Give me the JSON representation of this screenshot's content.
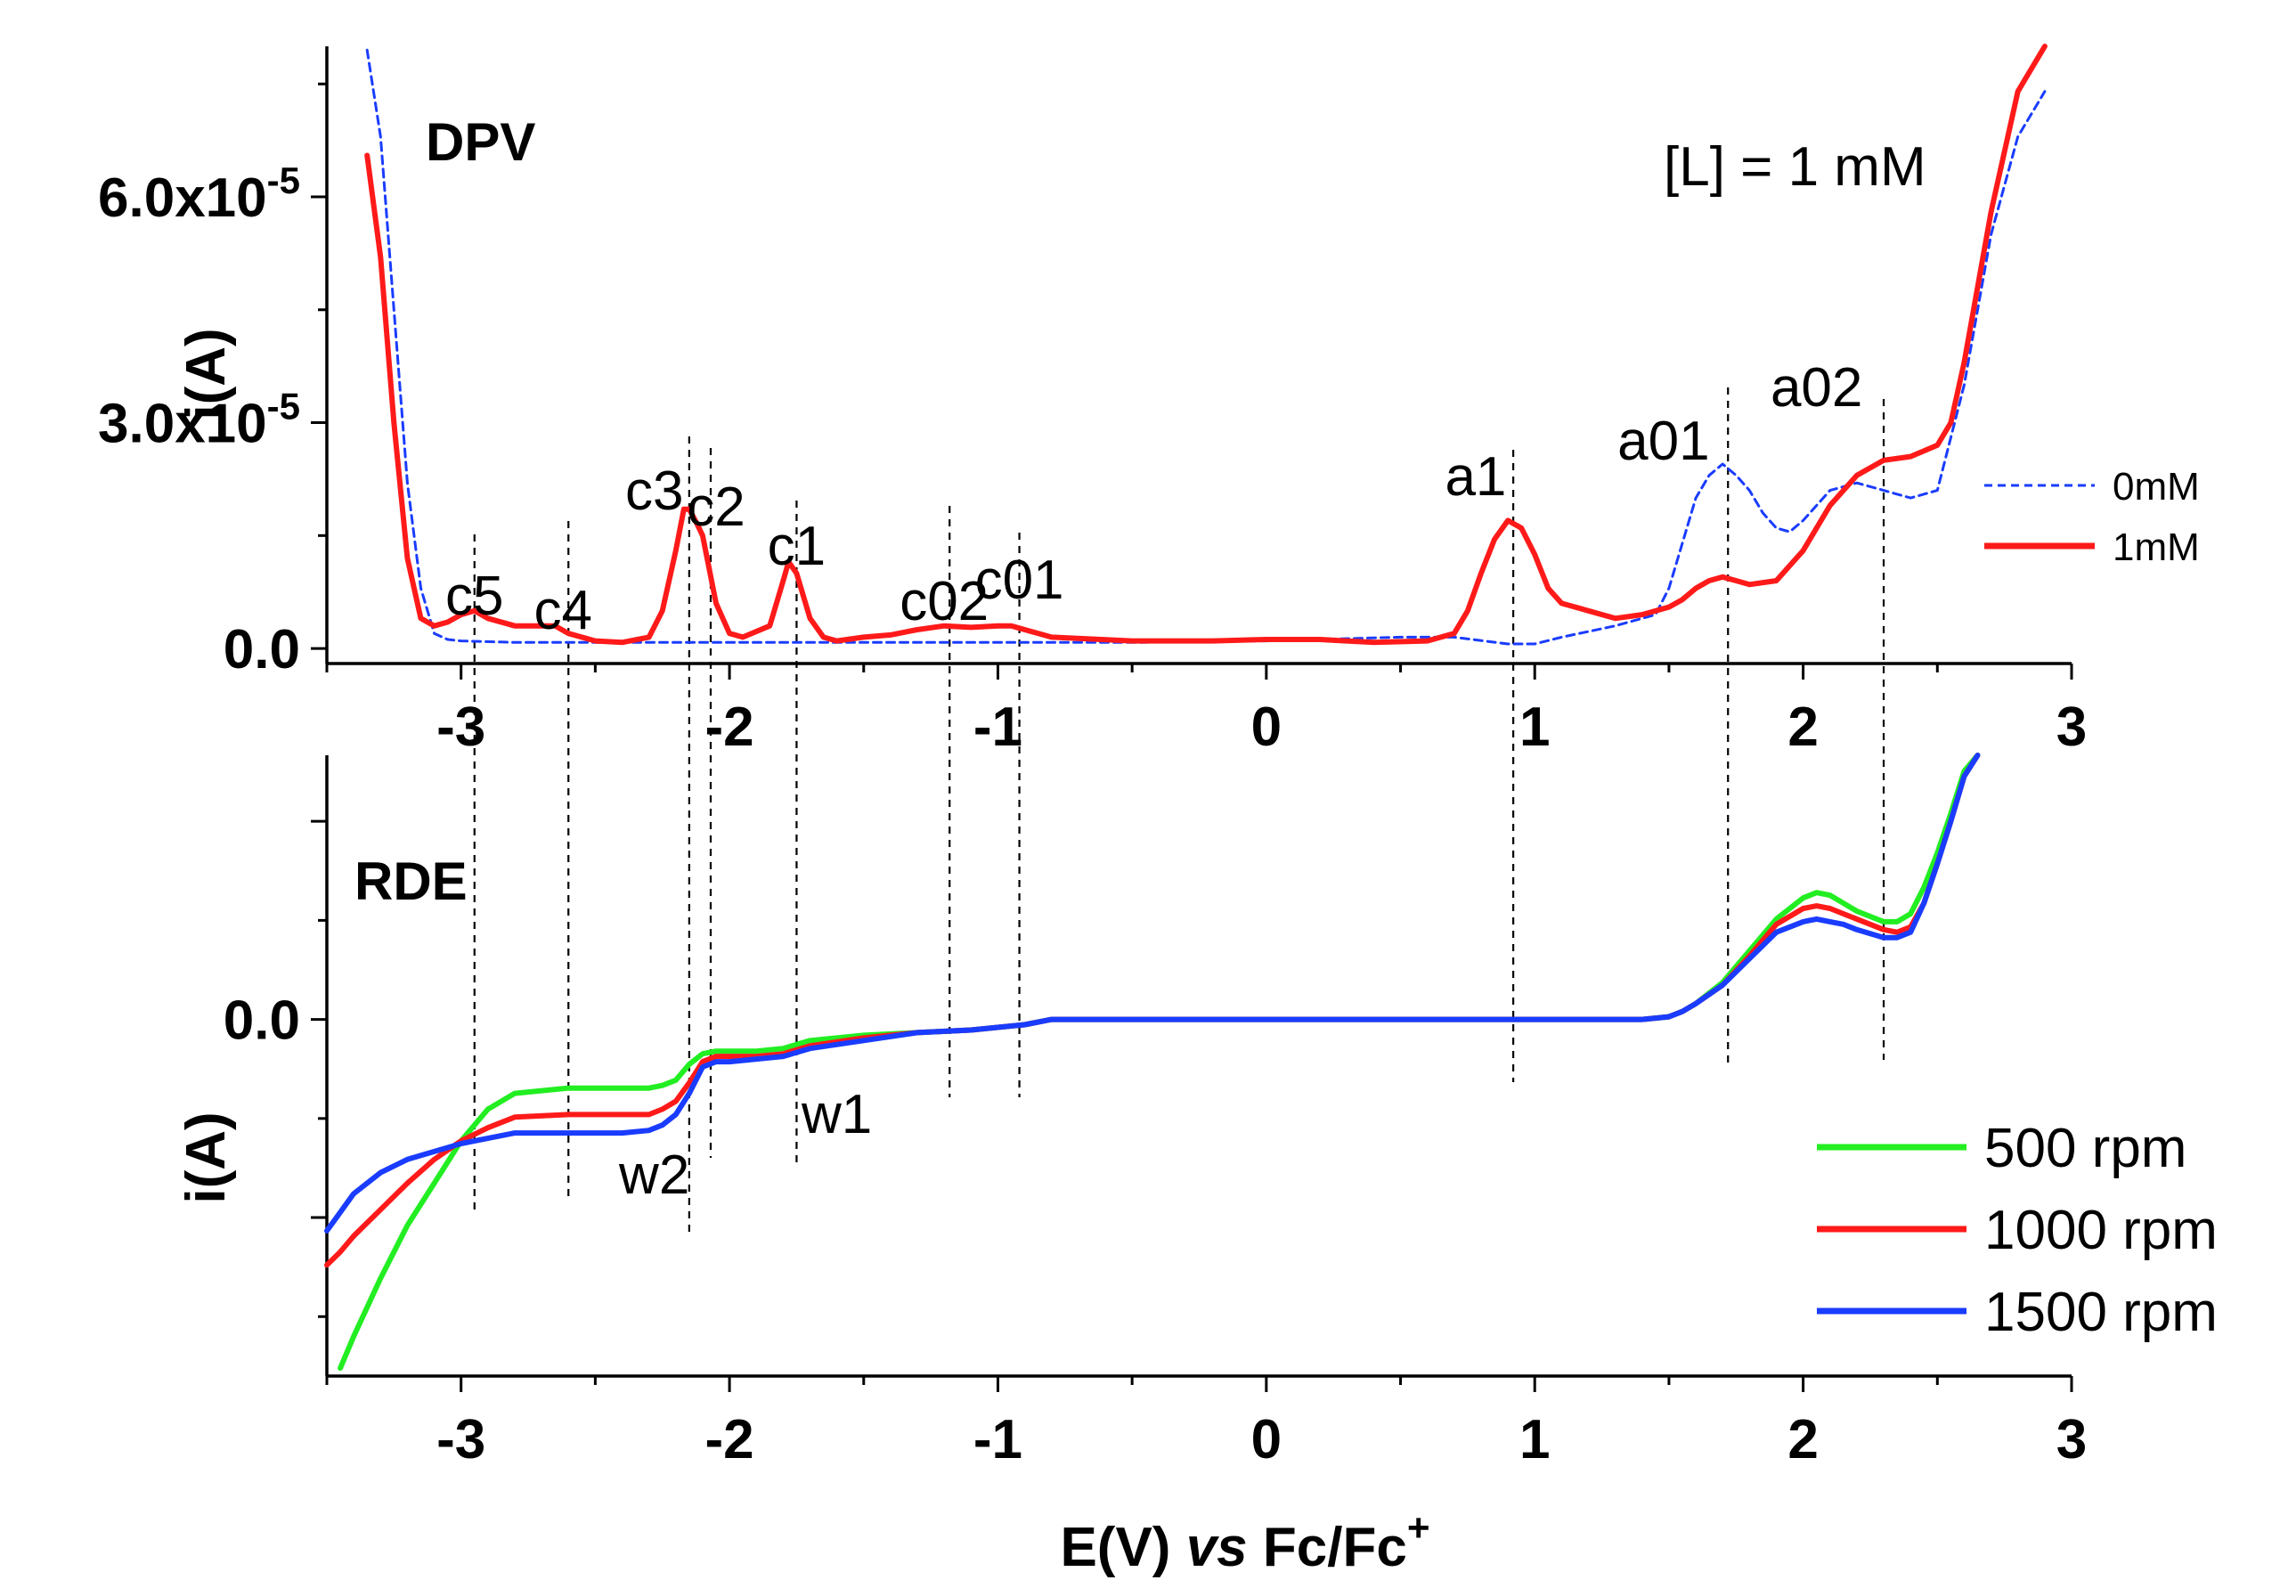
{
  "chart_data": [
    {
      "panel": "DPV",
      "type": "line",
      "panel_label": "DPV",
      "annotation": "[L] = 1 mM",
      "ylabel": "i(A)",
      "xlim": [
        -3.5,
        3.0
      ],
      "ylim": [
        -2e-06,
        8e-05
      ],
      "x_ticks": [
        -3,
        -2,
        -1,
        0,
        1,
        2,
        3
      ],
      "x_tick_labels": [
        "-3",
        "-2",
        "-1",
        "0",
        "1",
        "2",
        "3"
      ],
      "y_ticks": [
        0,
        3e-05,
        6e-05
      ],
      "y_tick_labels": [
        {
          "mantissa": "0.0",
          "exp": ""
        },
        {
          "mantissa": "3.0x10",
          "exp": "-5"
        },
        {
          "mantissa": "6.0x10",
          "exp": "-5"
        }
      ],
      "series": [
        {
          "name": "0mM",
          "color": "#1a3cff",
          "style": "dashed",
          "x": [
            -3.35,
            -3.3,
            -3.25,
            -3.2,
            -3.15,
            -3.1,
            -3.05,
            -3.0,
            -2.8,
            -2.5,
            -2.2,
            -2.0,
            -1.5,
            -1.0,
            -0.5,
            0.0,
            0.5,
            0.7,
            0.9,
            1.0,
            1.1,
            1.3,
            1.45,
            1.5,
            1.55,
            1.6,
            1.65,
            1.7,
            1.75,
            1.8,
            1.85,
            1.9,
            1.95,
            2.0,
            2.1,
            2.2,
            2.3,
            2.4,
            2.5,
            2.6,
            2.7,
            2.8,
            2.9
          ],
          "y": [
            7.95e-05,
            6.8e-05,
            4.5e-05,
            2.2e-05,
            8e-06,
            2e-06,
            1.2e-06,
            1e-06,
            8e-07,
            8e-07,
            8e-07,
            8e-07,
            8e-07,
            8e-07,
            8e-07,
            1e-06,
            1.5e-06,
            1.5e-06,
            6e-07,
            6e-07,
            1.5e-06,
            3e-06,
            4.5e-06,
            8e-06,
            1.4e-05,
            2e-05,
            2.3e-05,
            2.45e-05,
            2.3e-05,
            2.1e-05,
            1.8e-05,
            1.6e-05,
            1.55e-05,
            1.7e-05,
            2.1e-05,
            2.2e-05,
            2.1e-05,
            2e-05,
            2.1e-05,
            3.5e-05,
            5.5e-05,
            6.8e-05,
            7.4e-05
          ]
        },
        {
          "name": "1mM",
          "color": "#ff1a1a",
          "style": "solid",
          "x": [
            -3.35,
            -3.3,
            -3.25,
            -3.2,
            -3.15,
            -3.1,
            -3.05,
            -3.0,
            -2.95,
            -2.9,
            -2.8,
            -2.7,
            -2.65,
            -2.6,
            -2.5,
            -2.4,
            -2.3,
            -2.25,
            -2.2,
            -2.17,
            -2.15,
            -2.12,
            -2.1,
            -2.05,
            -2.0,
            -1.95,
            -1.85,
            -1.8,
            -1.78,
            -1.75,
            -1.7,
            -1.65,
            -1.6,
            -1.5,
            -1.4,
            -1.3,
            -1.2,
            -1.1,
            -1.0,
            -0.95,
            -0.9,
            -0.8,
            -0.5,
            -0.2,
            0.0,
            0.2,
            0.4,
            0.6,
            0.7,
            0.75,
            0.8,
            0.85,
            0.9,
            0.95,
            1.0,
            1.05,
            1.1,
            1.2,
            1.3,
            1.4,
            1.5,
            1.55,
            1.6,
            1.65,
            1.7,
            1.75,
            1.8,
            1.9,
            2.0,
            2.1,
            2.2,
            2.3,
            2.4,
            2.5,
            2.55,
            2.6,
            2.65,
            2.7,
            2.8,
            2.9
          ],
          "y": [
            6.55e-05,
            5.2e-05,
            3e-05,
            1.2e-05,
            4e-06,
            3e-06,
            3.5e-06,
            4.5e-06,
            5e-06,
            4e-06,
            3e-06,
            3e-06,
            3e-06,
            2e-06,
            1e-06,
            8e-07,
            1.5e-06,
            5e-06,
            1.3e-05,
            1.85e-05,
            1.85e-05,
            1.65e-05,
            1.5e-05,
            6e-06,
            2e-06,
            1.5e-06,
            3e-06,
            9e-06,
            1.15e-05,
            1e-05,
            4e-06,
            1.5e-06,
            1e-06,
            1.5e-06,
            1.8e-06,
            2.5e-06,
            3e-06,
            2.8e-06,
            3e-06,
            3e-06,
            2.5e-06,
            1.5e-06,
            1e-06,
            1e-06,
            1.2e-06,
            1.2e-06,
            8e-07,
            1e-06,
            2e-06,
            5e-06,
            1e-05,
            1.45e-05,
            1.7e-05,
            1.6e-05,
            1.25e-05,
            8e-06,
            6e-06,
            5e-06,
            4e-06,
            4.5e-06,
            5.5e-06,
            6.5e-06,
            8e-06,
            9e-06,
            9.5e-06,
            9e-06,
            8.5e-06,
            9e-06,
            1.3e-05,
            1.9e-05,
            2.3e-05,
            2.5e-05,
            2.55e-05,
            2.7e-05,
            3e-05,
            3.8e-05,
            4.8e-05,
            5.8e-05,
            7.4e-05,
            8.2e-05
          ]
        }
      ],
      "legend": [
        {
          "label": "0mM",
          "color": "#1a3cff",
          "style": "dashed"
        },
        {
          "label": "1mM",
          "color": "#ff1a1a",
          "style": "solid"
        }
      ]
    },
    {
      "panel": "RDE",
      "type": "line",
      "panel_label": "RDE",
      "ylabel": "i(A)",
      "xlabel_parts": {
        "pre": "E(V) ",
        "italic": "vs",
        "post": " Fc/Fc",
        "sup": "+"
      },
      "xlim": [
        -3.5,
        3.0
      ],
      "ylim": [
        -1.35,
        1.0
      ],
      "x_ticks": [
        -3,
        -2,
        -1,
        0,
        1,
        2,
        3
      ],
      "x_tick_labels": [
        "-3",
        "-2",
        "-1",
        "0",
        "1",
        "2",
        "3"
      ],
      "y_ticks": [
        0.0
      ],
      "y_tick_labels": [
        "0.0"
      ],
      "series": [
        {
          "name": "500 rpm",
          "color": "#22ee22",
          "x": [
            -3.45,
            -3.4,
            -3.3,
            -3.2,
            -3.1,
            -3.0,
            -2.9,
            -2.8,
            -2.6,
            -2.4,
            -2.3,
            -2.25,
            -2.2,
            -2.15,
            -2.1,
            -2.05,
            -2.0,
            -1.9,
            -1.8,
            -1.7,
            -1.5,
            -1.3,
            -1.1,
            -0.9,
            -0.8,
            -0.5,
            0.0,
            0.5,
            1.0,
            1.4,
            1.5,
            1.55,
            1.6,
            1.7,
            1.8,
            1.9,
            2.0,
            2.05,
            2.1,
            2.15,
            2.2,
            2.3,
            2.35,
            2.4,
            2.45,
            2.5,
            2.55,
            2.6,
            2.65
          ],
          "y": [
            -1.32,
            -1.2,
            -0.98,
            -0.78,
            -0.62,
            -0.46,
            -0.34,
            -0.28,
            -0.26,
            -0.26,
            -0.26,
            -0.25,
            -0.23,
            -0.17,
            -0.13,
            -0.12,
            -0.12,
            -0.12,
            -0.11,
            -0.08,
            -0.06,
            -0.05,
            -0.04,
            -0.02,
            0.0,
            0.0,
            0.0,
            0.0,
            0.0,
            0.0,
            0.01,
            0.03,
            0.06,
            0.14,
            0.26,
            0.38,
            0.46,
            0.48,
            0.47,
            0.44,
            0.41,
            0.37,
            0.37,
            0.4,
            0.5,
            0.63,
            0.78,
            0.94,
            1.0
          ]
        },
        {
          "name": "1000 rpm",
          "color": "#ff1a1a",
          "x": [
            -3.5,
            -3.45,
            -3.4,
            -3.3,
            -3.2,
            -3.1,
            -3.0,
            -2.9,
            -2.8,
            -2.6,
            -2.4,
            -2.3,
            -2.25,
            -2.2,
            -2.15,
            -2.1,
            -2.05,
            -2.0,
            -1.9,
            -1.8,
            -1.7,
            -1.5,
            -1.3,
            -1.1,
            -0.9,
            -0.8,
            -0.5,
            0.0,
            0.5,
            1.0,
            1.4,
            1.5,
            1.55,
            1.6,
            1.7,
            1.8,
            1.9,
            2.0,
            2.05,
            2.1,
            2.15,
            2.2,
            2.3,
            2.35,
            2.4,
            2.45,
            2.5,
            2.55,
            2.6,
            2.65
          ],
          "y": [
            -0.93,
            -0.88,
            -0.82,
            -0.72,
            -0.62,
            -0.53,
            -0.46,
            -0.41,
            -0.37,
            -0.36,
            -0.36,
            -0.36,
            -0.34,
            -0.31,
            -0.24,
            -0.16,
            -0.14,
            -0.14,
            -0.14,
            -0.13,
            -0.1,
            -0.07,
            -0.05,
            -0.04,
            -0.02,
            0.0,
            0.0,
            0.0,
            0.0,
            0.0,
            0.0,
            0.01,
            0.03,
            0.06,
            0.13,
            0.24,
            0.36,
            0.42,
            0.43,
            0.42,
            0.4,
            0.38,
            0.34,
            0.33,
            0.35,
            0.44,
            0.59,
            0.75,
            0.92,
            1.0
          ]
        },
        {
          "name": "1500 rpm",
          "color": "#1a3cff",
          "x": [
            -3.5,
            -3.45,
            -3.4,
            -3.3,
            -3.2,
            -3.1,
            -3.0,
            -2.9,
            -2.8,
            -2.6,
            -2.4,
            -2.3,
            -2.25,
            -2.2,
            -2.15,
            -2.1,
            -2.05,
            -2.0,
            -1.9,
            -1.8,
            -1.7,
            -1.5,
            -1.3,
            -1.1,
            -0.9,
            -0.8,
            -0.5,
            0.0,
            0.5,
            1.0,
            1.4,
            1.5,
            1.55,
            1.6,
            1.7,
            1.8,
            1.9,
            2.0,
            2.05,
            2.1,
            2.15,
            2.2,
            2.3,
            2.35,
            2.4,
            2.45,
            2.5,
            2.55,
            2.6,
            2.65
          ],
          "y": [
            -0.8,
            -0.73,
            -0.66,
            -0.58,
            -0.53,
            -0.5,
            -0.47,
            -0.45,
            -0.43,
            -0.43,
            -0.43,
            -0.42,
            -0.4,
            -0.36,
            -0.28,
            -0.18,
            -0.16,
            -0.16,
            -0.15,
            -0.14,
            -0.11,
            -0.08,
            -0.05,
            -0.04,
            -0.02,
            0.0,
            0.0,
            0.0,
            0.0,
            0.0,
            0.0,
            0.01,
            0.03,
            0.06,
            0.13,
            0.23,
            0.33,
            0.37,
            0.38,
            0.37,
            0.36,
            0.34,
            0.31,
            0.31,
            0.33,
            0.44,
            0.59,
            0.75,
            0.92,
            1.0
          ]
        }
      ],
      "legend": [
        {
          "label": "500 rpm",
          "color": "#22ee22"
        },
        {
          "label": "1000 rpm",
          "color": "#ff1a1a"
        },
        {
          "label": "1500 rpm",
          "color": "#1a3cff"
        }
      ]
    }
  ],
  "peak_markers": [
    {
      "label": "c5",
      "x": -2.95
    },
    {
      "label": "c4",
      "x": -2.6
    },
    {
      "label": "c3",
      "x": -2.15
    },
    {
      "label": "c2",
      "x": -2.07
    },
    {
      "label": "c1",
      "x": -1.75
    },
    {
      "label": "c02",
      "x": -1.18
    },
    {
      "label": "c01",
      "x": -0.92
    },
    {
      "label": "a1",
      "x": 0.92
    },
    {
      "label": "a01",
      "x": 1.72
    },
    {
      "label": "a02",
      "x": 2.3
    }
  ],
  "wave_labels": [
    {
      "label": "w1",
      "x": -1.75
    },
    {
      "label": "w2",
      "x": -2.15
    }
  ]
}
